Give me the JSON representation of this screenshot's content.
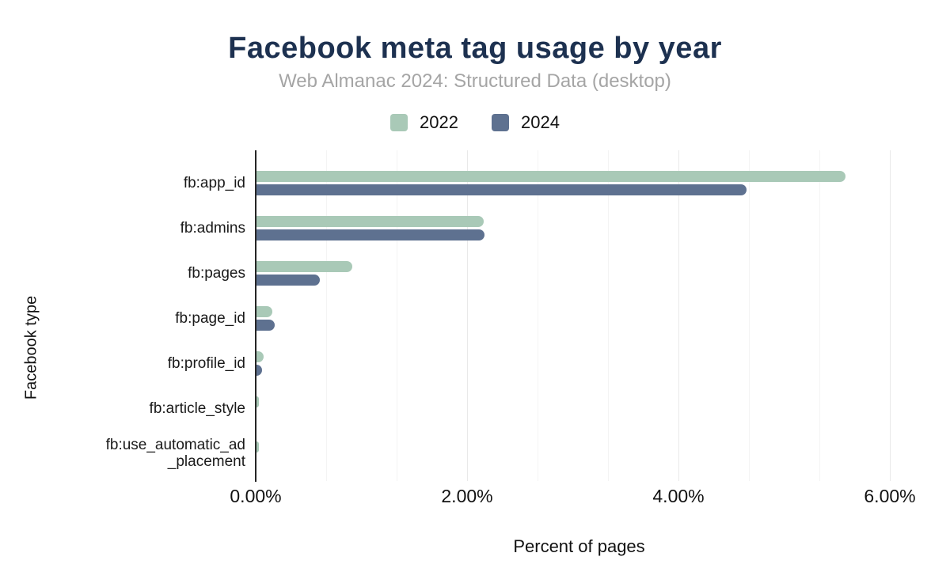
{
  "title": "Facebook meta tag usage by year",
  "subtitle": "Web Almanac 2024: Structured Data (desktop)",
  "colors": {
    "title": "#1d3150",
    "subtitle": "#a5a5a5",
    "series_2022": "#a9c9b7",
    "series_2024": "#5e7190",
    "axis_line": "#262626"
  },
  "legend": {
    "items": [
      {
        "label": "2022",
        "color": "#a9c9b7"
      },
      {
        "label": "2024",
        "color": "#5e7190"
      }
    ]
  },
  "chart_data": {
    "type": "bar",
    "orientation": "horizontal",
    "title": "Facebook meta tag usage by year",
    "subtitle": "Web Almanac 2024: Structured Data (desktop)",
    "xlabel": "Percent of pages",
    "ylabel": "Facebook type",
    "categories": [
      "fb:app_id",
      "fb:admins",
      "fb:pages",
      "fb:page_id",
      "fb:profile_id",
      "fb:article_style",
      "fb:use_automatic_ad_placement"
    ],
    "category_display_lines": [
      [
        "fb:app_id"
      ],
      [
        "fb:admins"
      ],
      [
        "fb:pages"
      ],
      [
        "fb:page_id"
      ],
      [
        "fb:profile_id"
      ],
      [
        "fb:article_style"
      ],
      [
        "fb:use_automatic_ad",
        "_placement"
      ]
    ],
    "series": [
      {
        "name": "2022",
        "color": "#a9c9b7",
        "values": [
          5.57,
          2.15,
          0.91,
          0.15,
          0.07,
          0.02,
          0.02
        ]
      },
      {
        "name": "2024",
        "color": "#5e7190",
        "values": [
          4.64,
          2.16,
          0.6,
          0.17,
          0.05,
          0.0,
          0.0
        ]
      }
    ],
    "x_ticks": [
      {
        "value": 0,
        "label": "0.00%"
      },
      {
        "value": 2,
        "label": "2.00%"
      },
      {
        "value": 4,
        "label": "4.00%"
      },
      {
        "value": 6,
        "label": "6.00%"
      }
    ],
    "xlim": [
      0,
      6.12
    ],
    "grid": {
      "major_dtick_pct": 2,
      "minor_divisions": 3,
      "shown": true
    },
    "legend_position": "top",
    "value_unit": "percent_of_pages"
  }
}
